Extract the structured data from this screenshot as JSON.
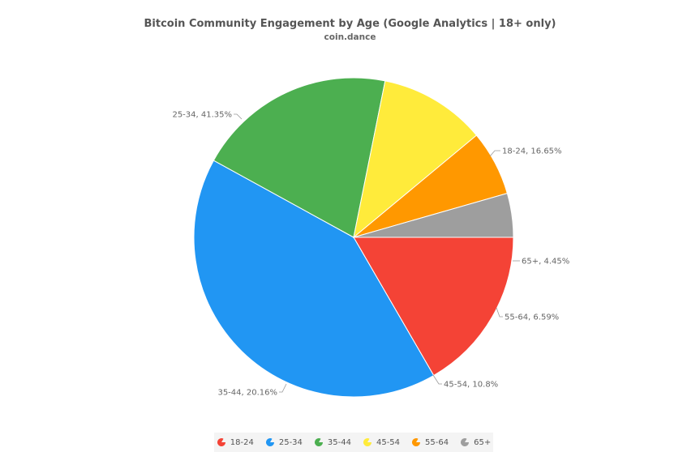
{
  "chart_data": {
    "type": "pie",
    "title": "Bitcoin Community Engagement by Age (Google Analytics | 18+ only)",
    "subtitle": "coin.dance",
    "slices": [
      {
        "label": "18-24",
        "value": 16.65,
        "display": "18-24, 16.65%",
        "color": "#f44336"
      },
      {
        "label": "25-34",
        "value": 41.35,
        "display": "25-34, 41.35%",
        "color": "#2196f3"
      },
      {
        "label": "35-44",
        "value": 20.16,
        "display": "35-44, 20.16%",
        "color": "#4caf50"
      },
      {
        "label": "45-54",
        "value": 10.8,
        "display": "45-54, 10.8%",
        "color": "#ffeb3b"
      },
      {
        "label": "55-64",
        "value": 6.59,
        "display": "55-64, 6.59%",
        "color": "#ff9800"
      },
      {
        "label": "65+",
        "value": 4.45,
        "display": "65+, 4.45%",
        "color": "#9e9e9e"
      }
    ],
    "legend_position": "bottom"
  }
}
